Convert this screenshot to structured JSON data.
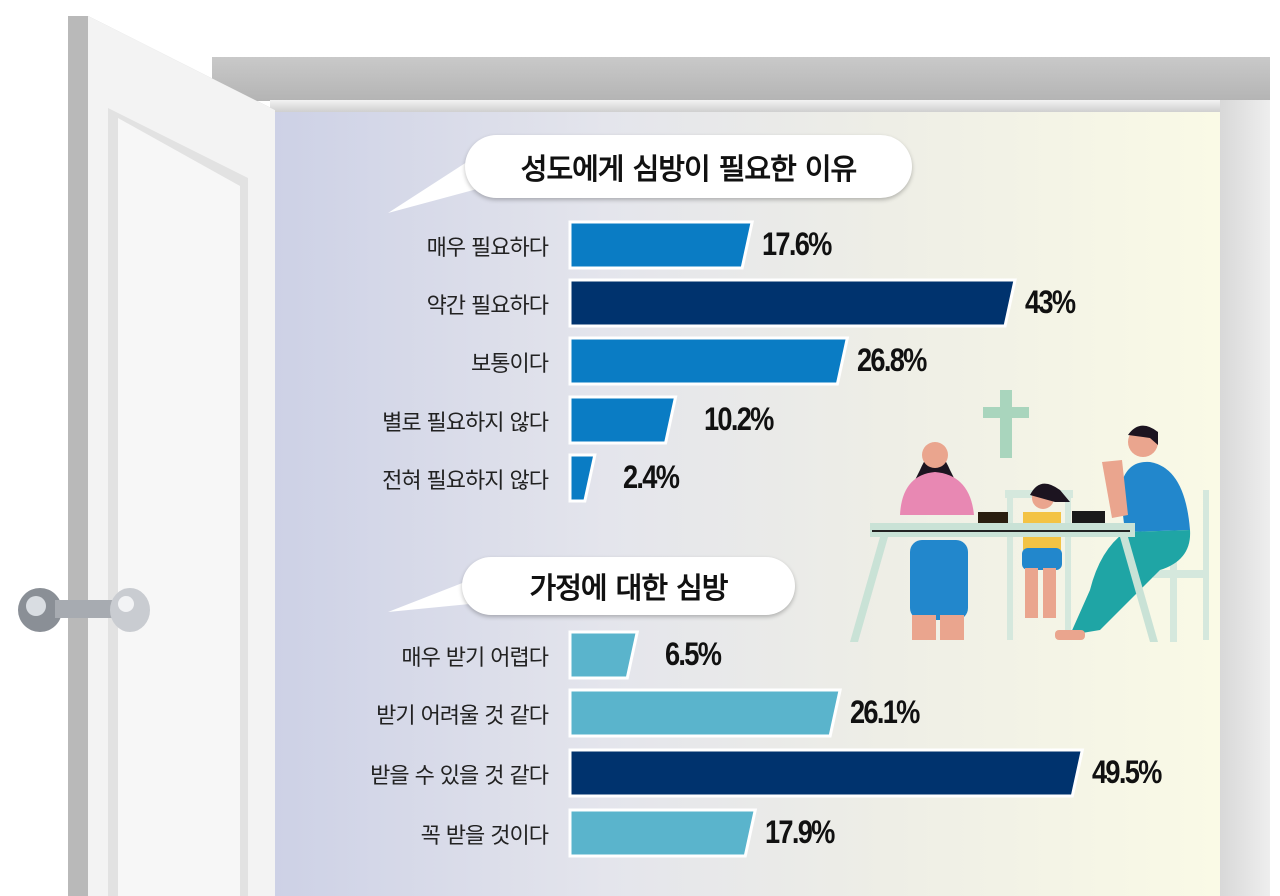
{
  "chart_data": [
    {
      "type": "bar",
      "orientation": "horizontal",
      "title": "성도에게 심방이 필요한 이유",
      "categories": [
        "매우 필요하다",
        "약간 필요하다",
        "보통이다",
        "별로 필요하지 않다",
        "전혀 필요하지 않다"
      ],
      "values": [
        17.6,
        43,
        26.8,
        10.2,
        2.4
      ],
      "value_labels": [
        "17.6%",
        "43%",
        "26.8%",
        "10.2%",
        "2.4%"
      ],
      "highlight_index": 1,
      "colors": {
        "bar": "#0a7cc4",
        "highlight": "#00336e"
      },
      "grid": false
    },
    {
      "type": "bar",
      "orientation": "horizontal",
      "title": "가정에 대한 심방",
      "categories": [
        "매우 받기 어렵다",
        "받기 어려울 것 같다",
        "받을 수 있을 것 같다",
        "꼭 받을 것이다"
      ],
      "values": [
        6.5,
        26.1,
        49.5,
        17.9
      ],
      "value_labels": [
        "6.5%",
        "26.1%",
        "49.5%",
        "17.9%"
      ],
      "highlight_index": 2,
      "colors": {
        "bar": "#5ab4cc",
        "highlight": "#00336e"
      },
      "grid": false
    }
  ],
  "illustration": {
    "icon": "cross-icon"
  }
}
